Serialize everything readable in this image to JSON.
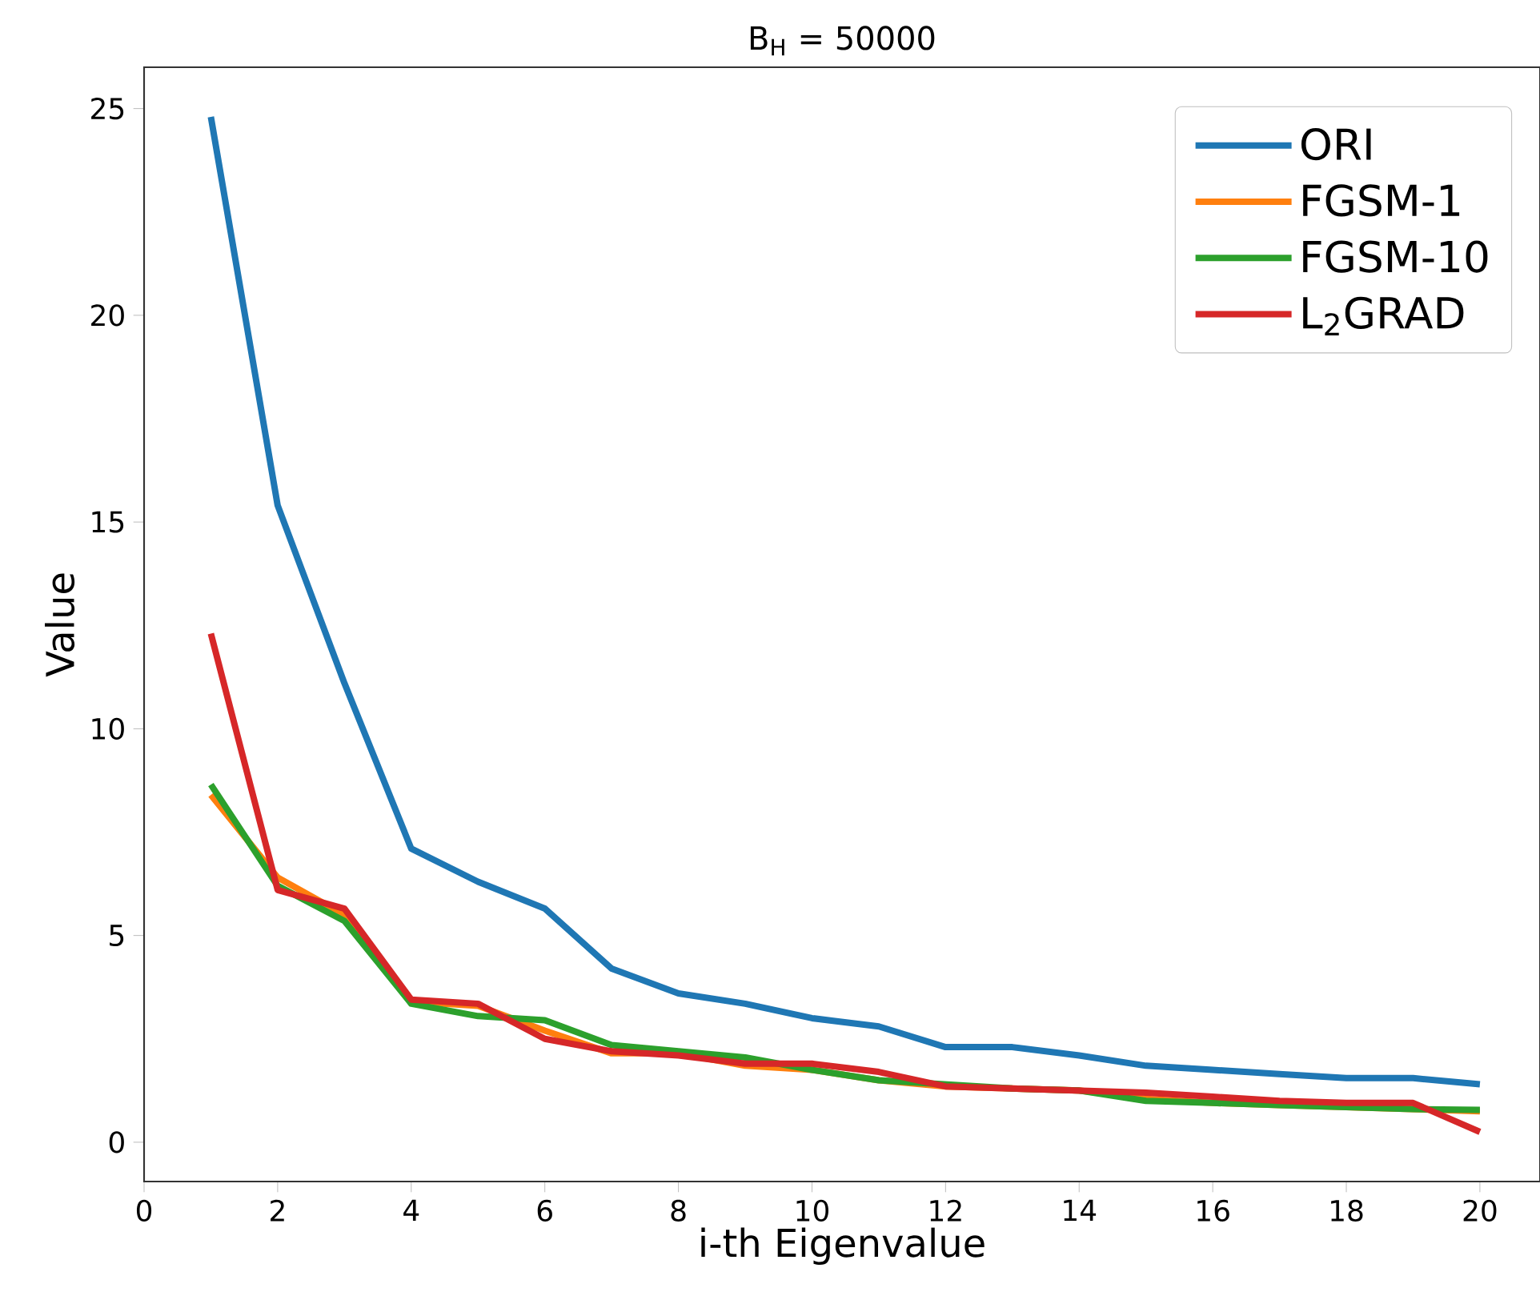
{
  "chart_data": {
    "type": "line",
    "title": "B$_{H}$ = 50000",
    "xlabel": "i-th Eigenvalue",
    "ylabel": "Value",
    "x": [
      1,
      2,
      3,
      4,
      5,
      6,
      7,
      8,
      9,
      10,
      11,
      12,
      13,
      14,
      15,
      16,
      17,
      18,
      19,
      20
    ],
    "series": [
      {
        "name": "ORI",
        "color": "#1f77b4",
        "values": [
          24.8,
          15.4,
          11.1,
          7.1,
          6.3,
          5.65,
          4.2,
          3.6,
          3.35,
          3.0,
          2.8,
          2.3,
          2.3,
          2.1,
          1.85,
          1.75,
          1.65,
          1.55,
          1.55,
          1.4
        ]
      },
      {
        "name": "FGSM-1",
        "color": "#ff7f0e",
        "values": [
          8.4,
          6.4,
          5.5,
          3.4,
          3.3,
          2.7,
          2.15,
          2.15,
          1.85,
          1.75,
          1.5,
          1.35,
          1.3,
          1.25,
          1.05,
          0.95,
          0.9,
          0.85,
          0.8,
          0.75
        ]
      },
      {
        "name": "FGSM-10",
        "color": "#2ca02c",
        "values": [
          8.65,
          6.2,
          5.35,
          3.35,
          3.05,
          2.95,
          2.35,
          2.2,
          2.05,
          1.75,
          1.5,
          1.4,
          1.3,
          1.25,
          1.0,
          0.95,
          0.9,
          0.85,
          0.8,
          0.78
        ]
      },
      {
        "name": "L$_{2}$GRAD",
        "color": "#d62728",
        "values": [
          12.3,
          6.1,
          5.65,
          3.45,
          3.35,
          2.5,
          2.2,
          2.1,
          1.9,
          1.9,
          1.7,
          1.35,
          1.3,
          1.25,
          1.2,
          1.1,
          1.0,
          0.95,
          0.95,
          0.25
        ]
      }
    ],
    "xlim": [
      0,
      20.9
    ],
    "ylim": [
      -0.95,
      26
    ],
    "xticks": [
      0,
      2,
      4,
      6,
      8,
      10,
      12,
      14,
      16,
      18,
      20
    ],
    "yticks": [
      0,
      5,
      10,
      15,
      20,
      25
    ],
    "legend": "top right"
  }
}
